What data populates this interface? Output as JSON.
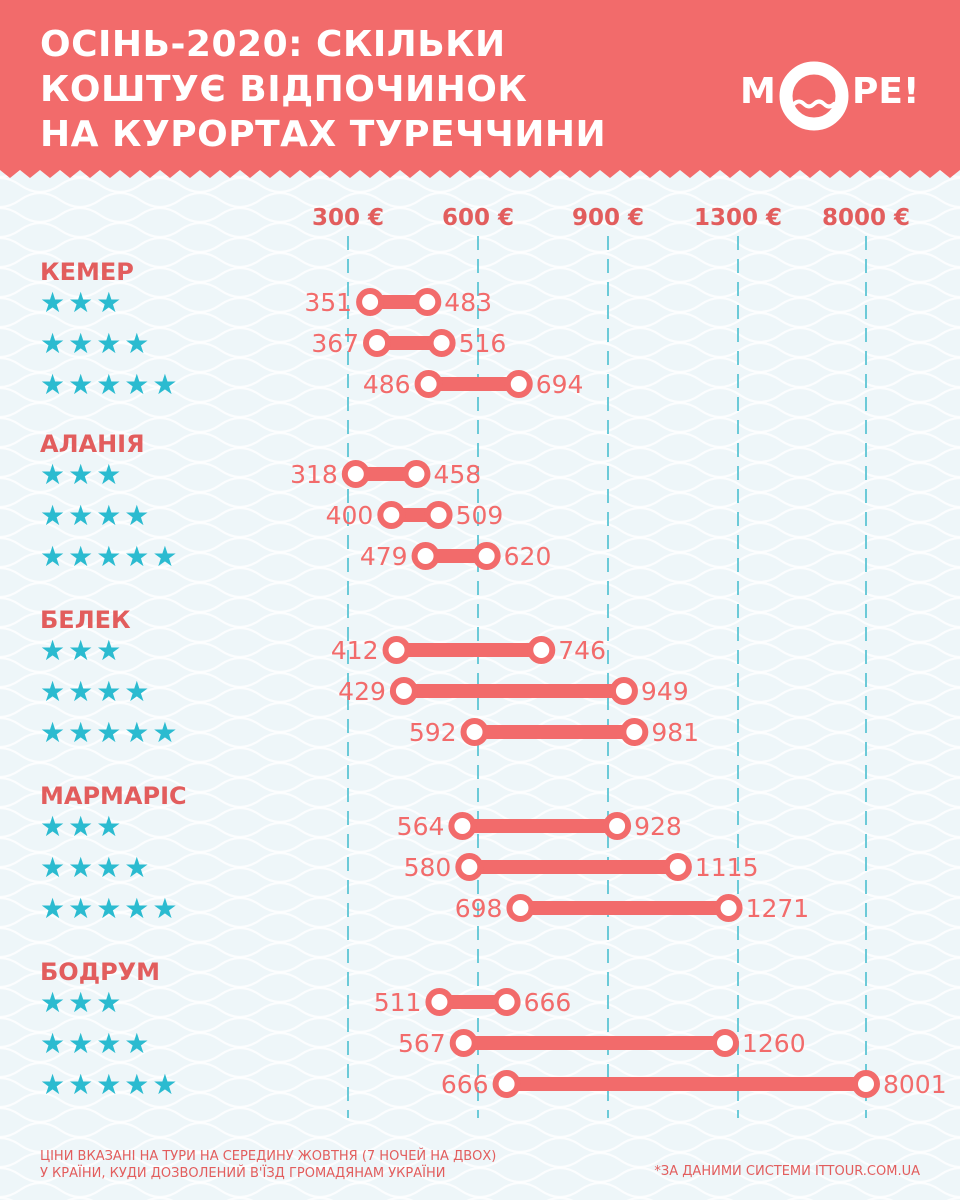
{
  "header": {
    "title_lines": [
      "ОСІНЬ-2020: СКІЛЬКИ",
      "КОШТУЄ ВІДПОЧИНОК",
      "НА КУРОРТАХ ТУРЕЧЧИНИ"
    ],
    "logo_left": "М",
    "logo_right": "РЕ!"
  },
  "colors": {
    "accent": "#f26b6b",
    "label": "#e25d5d",
    "star": "#2bbbd0",
    "grid": "#6ccad8",
    "background": "#eef6f9"
  },
  "chart_data": {
    "type": "range-bar",
    "axis_ticks": [
      "300 €",
      "600 €",
      "900 €",
      "1300 €",
      "8000 €"
    ],
    "axis_values": [
      300,
      600,
      900,
      1300,
      8000
    ],
    "groups": [
      {
        "name": "КЕМЕР",
        "rows": [
          {
            "stars": 3,
            "stars_text": "★★★",
            "min": 351,
            "max": 483
          },
          {
            "stars": 4,
            "stars_text": "★★★★",
            "min": 367,
            "max": 516
          },
          {
            "stars": 5,
            "stars_text": "★★★★★",
            "min": 486,
            "max": 694
          }
        ]
      },
      {
        "name": "АЛАНІЯ",
        "rows": [
          {
            "stars": 3,
            "stars_text": "★★★",
            "min": 318,
            "max": 458
          },
          {
            "stars": 4,
            "stars_text": "★★★★",
            "min": 400,
            "max": 509
          },
          {
            "stars": 5,
            "stars_text": "★★★★★",
            "min": 479,
            "max": 620
          }
        ]
      },
      {
        "name": "БЕЛЕК",
        "rows": [
          {
            "stars": 3,
            "stars_text": "★★★",
            "min": 412,
            "max": 746
          },
          {
            "stars": 4,
            "stars_text": "★★★★",
            "min": 429,
            "max": 949
          },
          {
            "stars": 5,
            "stars_text": "★★★★★",
            "min": 592,
            "max": 981
          }
        ]
      },
      {
        "name": "МАРМАРІС",
        "rows": [
          {
            "stars": 3,
            "stars_text": "★★★",
            "min": 564,
            "max": 928
          },
          {
            "stars": 4,
            "stars_text": "★★★★",
            "min": 580,
            "max": 1115
          },
          {
            "stars": 5,
            "stars_text": "★★★★★",
            "min": 698,
            "max": 1271
          }
        ]
      },
      {
        "name": "БОДРУМ",
        "rows": [
          {
            "stars": 3,
            "stars_text": "★★★",
            "min": 511,
            "max": 666
          },
          {
            "stars": 4,
            "stars_text": "★★★★",
            "min": 567,
            "max": 1260
          },
          {
            "stars": 5,
            "stars_text": "★★★★★",
            "min": 666,
            "max": 8001
          }
        ]
      }
    ]
  },
  "footer": {
    "note_line1": "Ціни вказані на тури на середину жовтня (7 ночей на двох)",
    "note_line2": "у країни, куди дозволений в'їзд громадянам України",
    "source": "*за даними системи ittour.com.ua"
  }
}
